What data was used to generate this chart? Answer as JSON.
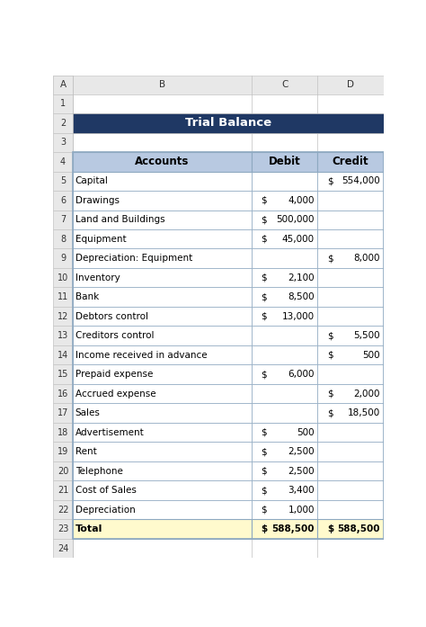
{
  "title": "Trial Balance",
  "title_bg": "#1F3864",
  "title_fg": "#FFFFFF",
  "header_bg": "#B8C9E1",
  "header_fg": "#000000",
  "total_bg": "#FFFACD",
  "table_border": "#8EA9C1",
  "rows": [
    {
      "account": "Capital",
      "debit": "",
      "credit": "554,000"
    },
    {
      "account": "Drawings",
      "debit": "4,000",
      "credit": ""
    },
    {
      "account": "Land and Buildings",
      "debit": "500,000",
      "credit": ""
    },
    {
      "account": "Equipment",
      "debit": "45,000",
      "credit": ""
    },
    {
      "account": "Depreciation: Equipment",
      "debit": "",
      "credit": "8,000"
    },
    {
      "account": "Inventory",
      "debit": "2,100",
      "credit": ""
    },
    {
      "account": "Bank",
      "debit": "8,500",
      "credit": ""
    },
    {
      "account": "Debtors control",
      "debit": "13,000",
      "credit": ""
    },
    {
      "account": "Creditors control",
      "debit": "",
      "credit": "5,500"
    },
    {
      "account": "Income received in advance",
      "debit": "",
      "credit": "500"
    },
    {
      "account": "Prepaid expense",
      "debit": "6,000",
      "credit": ""
    },
    {
      "account": "Accrued expense",
      "debit": "",
      "credit": "2,000"
    },
    {
      "account": "Sales",
      "debit": "",
      "credit": "18,500"
    },
    {
      "account": "Advertisement",
      "debit": "500",
      "credit": ""
    },
    {
      "account": "Rent",
      "debit": "2,500",
      "credit": ""
    },
    {
      "account": "Telephone",
      "debit": "2,500",
      "credit": ""
    },
    {
      "account": "Cost of Sales",
      "debit": "3,400",
      "credit": ""
    },
    {
      "account": "Depreciation",
      "debit": "1,000",
      "credit": ""
    }
  ],
  "total_row": {
    "account": "Total",
    "debit": "588,500",
    "credit": "588,500"
  },
  "excel_cols": [
    "A",
    "B",
    "C",
    "D"
  ],
  "bg_color": "#FFFFFF",
  "grid_color": "#C0C0C0",
  "header_strip_bg": "#E8E8E8",
  "cell_text_color": "#000000",
  "font_size": 7.5,
  "col_header_font_size": 7.5,
  "row_num_font_size": 7.0
}
